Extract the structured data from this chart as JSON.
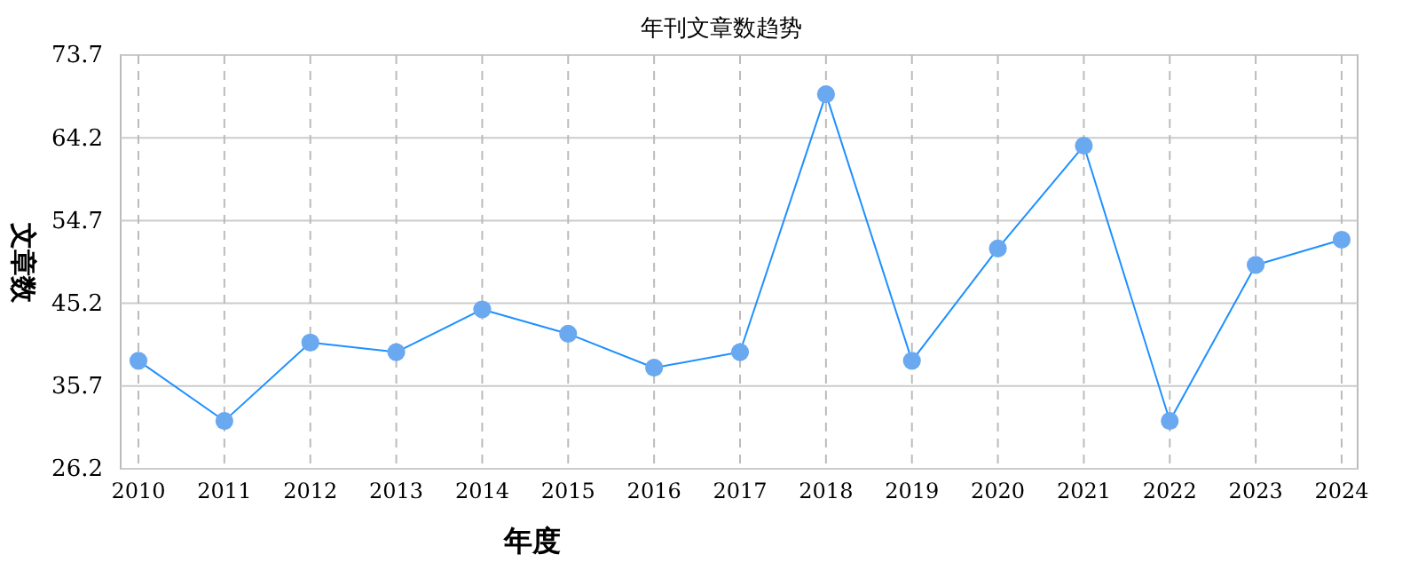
{
  "chart_data": {
    "type": "line",
    "title": "年刊文章数趋势",
    "xlabel": "年度",
    "ylabel": "文章数",
    "categories": [
      "2010",
      "2011",
      "2012",
      "2013",
      "2014",
      "2015",
      "2016",
      "2017",
      "2018",
      "2019",
      "2020",
      "2021",
      "2022",
      "2023",
      "2024"
    ],
    "series": [
      {
        "color": "#1e90ff",
        "values": [
          38.6,
          31.7,
          40.7,
          39.6,
          44.5,
          41.7,
          37.8,
          39.6,
          69.2,
          38.6,
          51.5,
          63.3,
          31.7,
          49.6,
          52.5
        ]
      }
    ],
    "ylim": [
      26.2,
      73.7
    ],
    "yticks": [
      26.2,
      35.7,
      45.2,
      54.7,
      64.2,
      73.7
    ],
    "grid": true,
    "marker": "circle",
    "line_style": "solid"
  }
}
